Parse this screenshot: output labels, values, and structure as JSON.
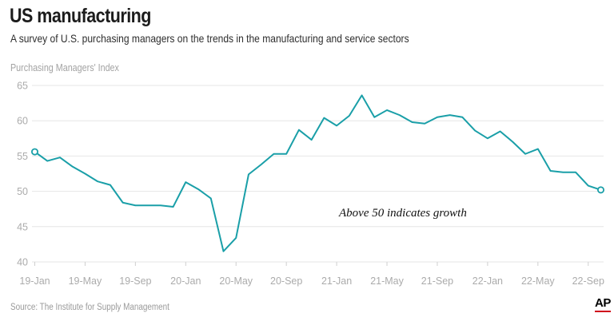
{
  "header": {
    "title": "US manufacturing",
    "subtitle": "A survey of U.S. purchasing managers on the trends in the manufacturing and service sectors"
  },
  "footer": {
    "source": "Source: The Institute for Supply Management",
    "logo": "AP"
  },
  "colors": {
    "line": "#1a9fa8",
    "grid": "#e6e6e6",
    "logo_underline": "#d0021b"
  },
  "chart_data": {
    "type": "line",
    "title": "US manufacturing",
    "ylabel": "Purchasing Managers' Index",
    "xlabel": "",
    "ylim": [
      40,
      65
    ],
    "yticks": [
      40,
      45,
      50,
      55,
      60,
      65
    ],
    "grid": true,
    "xtick_labels": [
      "19-Jan",
      "19-May",
      "19-Sep",
      "20-Jan",
      "20-May",
      "20-Sep",
      "21-Jan",
      "21-May",
      "21-Sep",
      "22-Jan",
      "22-May",
      "22-Sep"
    ],
    "annotation": "Above 50 indicates growth",
    "series": [
      {
        "x": [
          "2019-01",
          "2019-02",
          "2019-03",
          "2019-04",
          "2019-05",
          "2019-06",
          "2019-07",
          "2019-08",
          "2019-09",
          "2019-10",
          "2019-11",
          "2019-12",
          "2020-01",
          "2020-02",
          "2020-03",
          "2020-04",
          "2020-05",
          "2020-06",
          "2020-07",
          "2020-08",
          "2020-09",
          "2020-10",
          "2020-11",
          "2020-12",
          "2021-01",
          "2021-02",
          "2021-03",
          "2021-04",
          "2021-05",
          "2021-06",
          "2021-07",
          "2021-08",
          "2021-09",
          "2021-10",
          "2021-11",
          "2021-12",
          "2022-01",
          "2022-02",
          "2022-03",
          "2022-04",
          "2022-05",
          "2022-06",
          "2022-07",
          "2022-08",
          "2022-09",
          "2022-10"
        ],
        "values": [
          55.6,
          54.3,
          54.8,
          53.5,
          52.5,
          51.4,
          50.9,
          48.4,
          48.0,
          48.0,
          48.0,
          47.8,
          51.3,
          50.3,
          49.0,
          41.5,
          43.4,
          52.4,
          53.8,
          55.3,
          55.3,
          58.7,
          57.3,
          60.4,
          59.3,
          60.7,
          63.6,
          60.5,
          61.5,
          60.8,
          59.8,
          59.6,
          60.5,
          60.8,
          60.5,
          58.6,
          57.5,
          58.5,
          57.0,
          55.3,
          56.0,
          52.9,
          52.7,
          52.7,
          50.8,
          50.2
        ]
      }
    ]
  }
}
